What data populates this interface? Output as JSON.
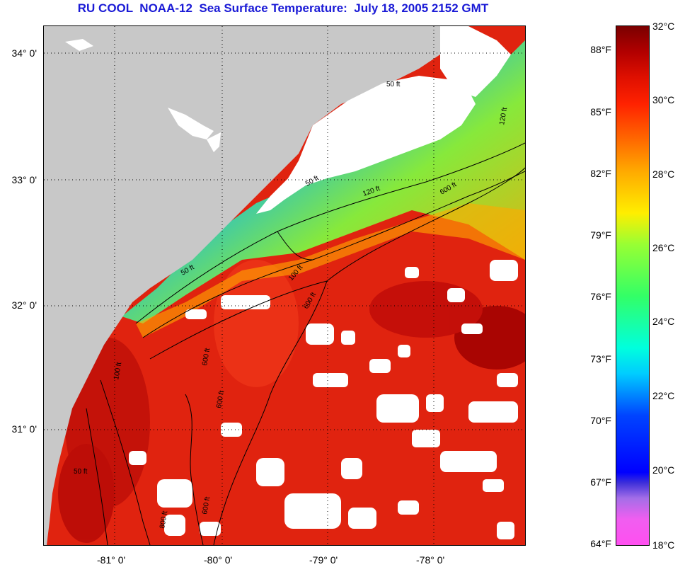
{
  "title": "RU COOL  NOAA-12  Sea Surface Temperature:  July 18, 2005 2152 GMT",
  "map": {
    "lat_labels": [
      "34° 0'",
      "33° 0'",
      "32° 0'",
      "31° 0'"
    ],
    "lon_labels": [
      "-81° 0'",
      "-80° 0'",
      "-79° 0'",
      "-78° 0'"
    ],
    "contour_labels": [
      "50 ft",
      "50 ft",
      "120 ft",
      "600 ft",
      "50 ft",
      "100 ft",
      "600 ft",
      "600 ft",
      "100 ft",
      "600 ft",
      "800 ft",
      "50 ft",
      "600 ft",
      "120 ft"
    ],
    "colors": {
      "land": "#c8c8c8",
      "cloud": "#ffffff",
      "warm": "#e0230f",
      "hot": "#a00000",
      "cool": "#00c8ff",
      "cold": "#ff40e0"
    }
  },
  "colorbar": {
    "fahrenheit_labels": [
      "88°F",
      "85°F",
      "82°F",
      "79°F",
      "76°F",
      "73°F",
      "70°F",
      "67°F",
      "64°F"
    ],
    "celsius_labels": [
      "32°C",
      "30°C",
      "28°C",
      "26°C",
      "24°C",
      "22°C",
      "20°C",
      "18°C"
    ]
  }
}
